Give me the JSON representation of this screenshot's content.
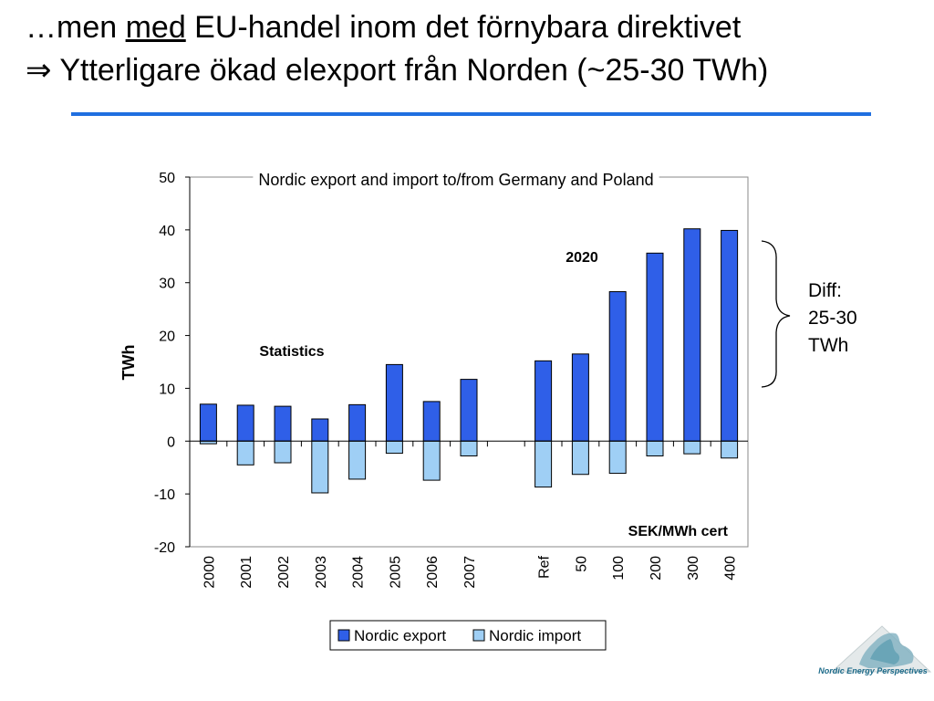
{
  "slide": {
    "title_line1_pre": "…men ",
    "title_line1_em": "med",
    "title_line1_post": " EU-handel inom det förnybara direktivet",
    "title_line2_arrow": "⇒",
    "title_line2": " Ytterligare ökad elexport från Norden (~25-30 TWh)",
    "rule_color": "#1f6fe0",
    "diff_lines": [
      "Diff:",
      "25-30",
      "TWh"
    ],
    "logo_text": "Nordic Energy Perspectives"
  },
  "chart_data": {
    "type": "bar",
    "title": "Nordic export and import to/from Germany and Poland",
    "ylabel": "TWh",
    "xlabel": "",
    "ylim": [
      -20,
      50
    ],
    "yticks": [
      50,
      40,
      30,
      20,
      10,
      0,
      -10,
      -20
    ],
    "grid": false,
    "legend_position": "bottom",
    "groups": [
      {
        "label": "Statistics",
        "categories": [
          "2000",
          "2001",
          "2002",
          "2003",
          "2004",
          "2005",
          "2006",
          "2007"
        ]
      },
      {
        "label": "2020",
        "sublabel": "SEK/MWh cert",
        "categories": [
          "Ref",
          "50",
          "100",
          "200",
          "300",
          "400"
        ]
      }
    ],
    "categories": [
      "2000",
      "2001",
      "2002",
      "2003",
      "2004",
      "2005",
      "2006",
      "2007",
      "",
      "Ref",
      "50",
      "100",
      "200",
      "300",
      "400"
    ],
    "series": [
      {
        "name": "Nordic export",
        "color": "#2f5fe8",
        "values": [
          7.0,
          6.8,
          6.6,
          4.2,
          6.9,
          14.5,
          7.5,
          11.7,
          null,
          15.2,
          16.5,
          28.3,
          35.6,
          40.2,
          39.9
        ]
      },
      {
        "name": "Nordic import",
        "color": "#9fcff5",
        "values": [
          -0.5,
          -4.5,
          -4.1,
          -9.8,
          -7.2,
          -2.3,
          -7.4,
          -2.8,
          null,
          -8.7,
          -6.3,
          -6.1,
          -2.8,
          -2.4,
          -3.2
        ]
      }
    ]
  }
}
